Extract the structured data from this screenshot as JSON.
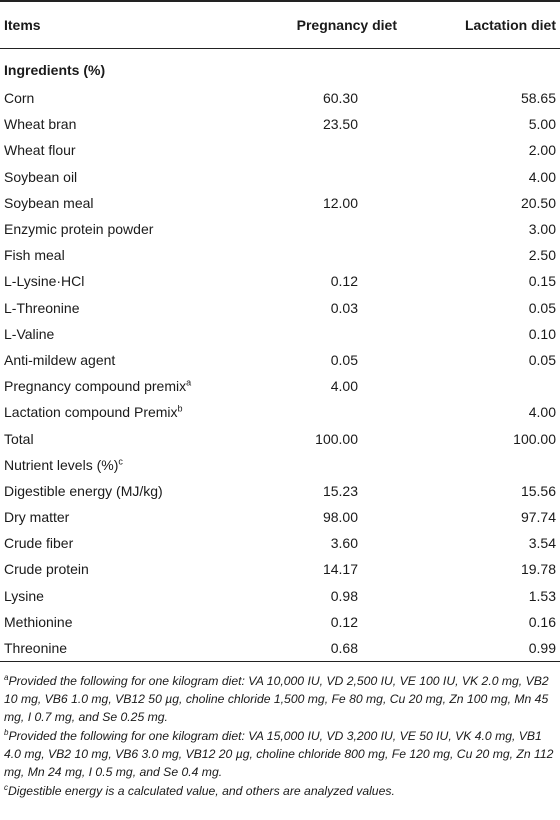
{
  "header": {
    "items": "Items",
    "pregnancy": "Pregnancy diet",
    "lactation": "Lactation diet"
  },
  "section_ingredients": "Ingredients (%)",
  "rows": [
    {
      "label": "Corn",
      "sup": "",
      "preg": "60.30",
      "lact": "58.65"
    },
    {
      "label": "Wheat bran",
      "sup": "",
      "preg": "23.50",
      "lact": "5.00"
    },
    {
      "label": "Wheat flour",
      "sup": "",
      "preg": "",
      "lact": "2.00"
    },
    {
      "label": "Soybean oil",
      "sup": "",
      "preg": "",
      "lact": "4.00"
    },
    {
      "label": "Soybean meal",
      "sup": "",
      "preg": "12.00",
      "lact": "20.50"
    },
    {
      "label": "Enzymic protein powder",
      "sup": "",
      "preg": "",
      "lact": "3.00"
    },
    {
      "label": "Fish meal",
      "sup": "",
      "preg": "",
      "lact": "2.50"
    },
    {
      "label": "L-Lysine·HCl",
      "sup": "",
      "preg": "0.12",
      "lact": "0.15"
    },
    {
      "label": "L-Threonine",
      "sup": "",
      "preg": "0.03",
      "lact": "0.05"
    },
    {
      "label": "L-Valine",
      "sup": "",
      "preg": "",
      "lact": "0.10"
    },
    {
      "label": "Anti-mildew agent",
      "sup": "",
      "preg": "0.05",
      "lact": "0.05"
    },
    {
      "label": "Pregnancy compound premix",
      "sup": "a",
      "preg": "4.00",
      "lact": ""
    },
    {
      "label": "Lactation compound Premix",
      "sup": "b",
      "preg": "",
      "lact": "4.00"
    },
    {
      "label": "Total",
      "sup": "",
      "preg": "100.00",
      "lact": "100.00"
    },
    {
      "label": "Nutrient levels (%)",
      "sup": "c",
      "preg": "",
      "lact": ""
    },
    {
      "label": "Digestible energy (MJ/kg)",
      "sup": "",
      "preg": "15.23",
      "lact": "15.56"
    },
    {
      "label": "Dry matter",
      "sup": "",
      "preg": "98.00",
      "lact": "97.74"
    },
    {
      "label": "Crude fiber",
      "sup": "",
      "preg": "3.60",
      "lact": "3.54"
    },
    {
      "label": "Crude protein",
      "sup": "",
      "preg": "14.17",
      "lact": "19.78"
    },
    {
      "label": "Lysine",
      "sup": "",
      "preg": "0.98",
      "lact": "1.53"
    },
    {
      "label": "Methionine",
      "sup": "",
      "preg": "0.12",
      "lact": "0.16"
    },
    {
      "label": "Threonine",
      "sup": "",
      "preg": "0.68",
      "lact": "0.99"
    }
  ],
  "footnotes": [
    {
      "mark": "a",
      "text": "Provided the following for one kilogram diet: VA 10,000 IU, VD 2,500 IU, VE 100 IU, VK 2.0 mg, VB2 10 mg, VB6 1.0 mg, VB12 50 µg, choline chloride 1,500 mg, Fe 80 mg, Cu 20 mg, Zn 100 mg, Mn 45 mg, I 0.7 mg, and Se 0.25 mg."
    },
    {
      "mark": "b",
      "text": "Provided the following for one kilogram diet: VA 15,000 IU, VD 3,200 IU, VE 50 IU, VK 4.0 mg, VB1 4.0 mg, VB2 10 mg, VB6 3.0 mg, VB12 20 µg, choline chloride 800 mg, Fe 120 mg, Cu 20 mg, Zn 112 mg, Mn 24 mg, I 0.5 mg, and Se 0.4 mg."
    },
    {
      "mark": "c",
      "text": "Digestible energy is a calculated value, and others are analyzed values."
    }
  ]
}
